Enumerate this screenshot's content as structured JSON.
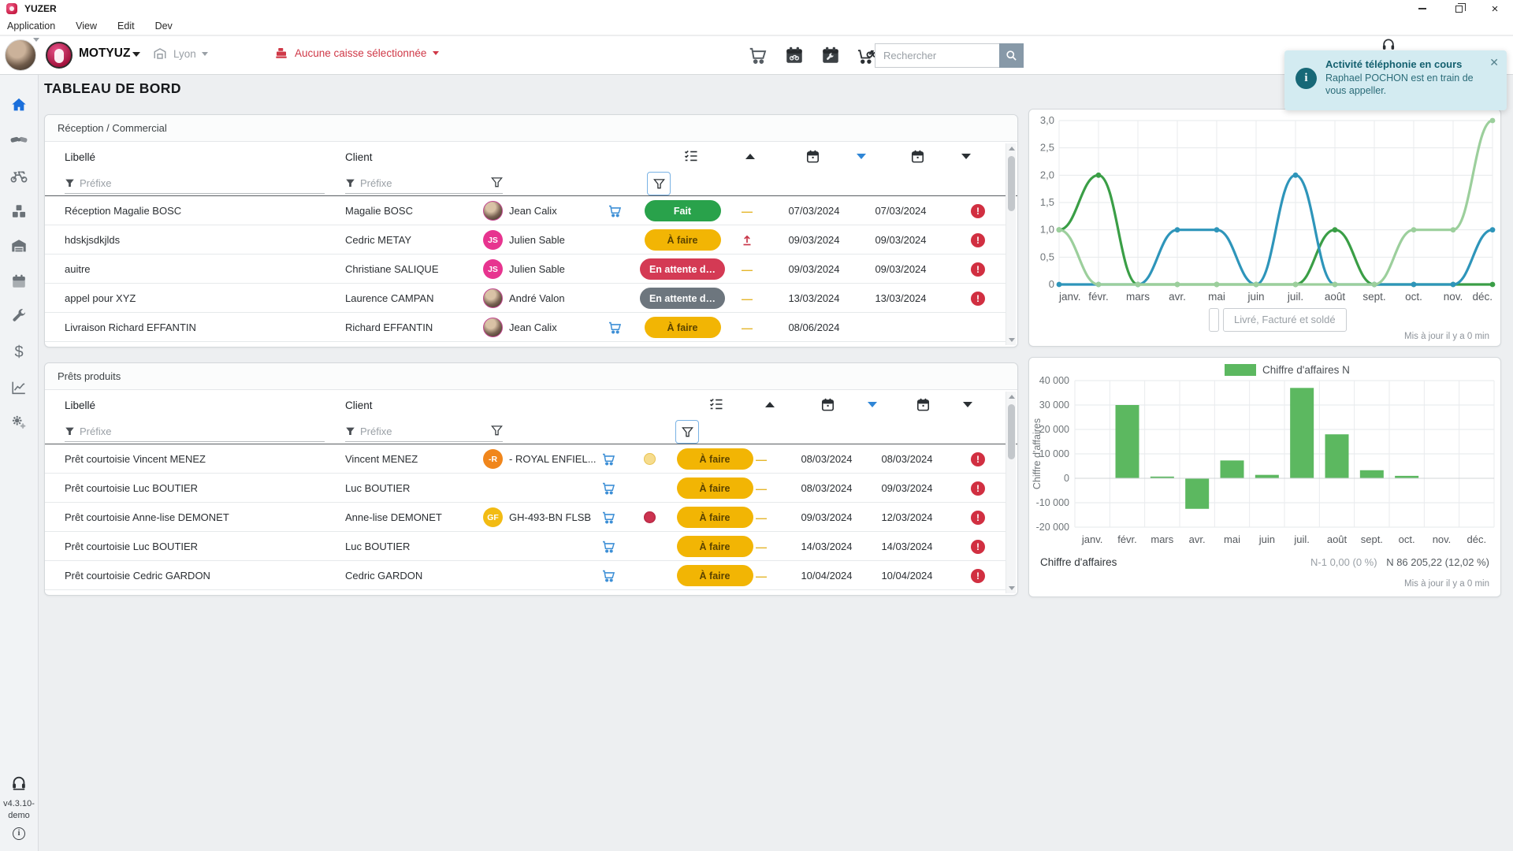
{
  "window": {
    "title": "YUZER"
  },
  "menu": {
    "items": [
      "Application",
      "View",
      "Edit",
      "Dev"
    ]
  },
  "toolbar": {
    "org": "MOTYUZ",
    "site": "Lyon",
    "cash_status": "Aucune caisse sélectionnée",
    "search_placeholder": "Rechercher"
  },
  "toast": {
    "title": "Activité téléphonie en cours",
    "message": "Raphael POCHON est en train de vous appeller."
  },
  "page": {
    "title": "TABLEAU DE BORD"
  },
  "sidebar": {
    "items": [
      {
        "id": "home",
        "icon": "home-icon",
        "active": true
      },
      {
        "id": "crm",
        "icon": "handshake-icon",
        "active": false
      },
      {
        "id": "motorcycles",
        "icon": "motorcycle-icon",
        "active": false
      },
      {
        "id": "stock",
        "icon": "cubes-icon",
        "active": false
      },
      {
        "id": "warehouse",
        "icon": "warehouse-icon",
        "active": false
      },
      {
        "id": "planning",
        "icon": "calendar-icon",
        "active": false
      },
      {
        "id": "workshop",
        "icon": "wrench-icon",
        "active": false
      },
      {
        "id": "finance",
        "icon": "dollar-icon",
        "active": false
      },
      {
        "id": "statistics",
        "icon": "chart-icon",
        "active": false
      },
      {
        "id": "settings",
        "icon": "gears-icon",
        "active": false
      }
    ],
    "version": "v4.3.10-demo"
  },
  "tables": [
    {
      "kind": "reception",
      "title": "Réception / Commercial",
      "columns": {
        "libelle": "Libellé",
        "client": "Client"
      },
      "filter_placeholder": "Préfixe",
      "rows": [
        {
          "libelle": "Réception Magalie BOSC",
          "client": "Magalie BOSC",
          "advisor": {
            "name": "Jean Calix",
            "type": "photo"
          },
          "cart": true,
          "status": "Fait",
          "status_color": "green",
          "flag": "dash",
          "date1": "07/03/2024",
          "date2": "07/03/2024",
          "alert": true
        },
        {
          "libelle": "hdskjsdkjlds",
          "client": "Cedric METAY",
          "advisor": {
            "name": "Julien Sable",
            "type": "initials",
            "initials": "JS",
            "color": "#e7348f"
          },
          "cart": false,
          "status": "À faire",
          "status_color": "yellow",
          "flag": "upload",
          "date1": "09/03/2024",
          "date2": "09/03/2024",
          "alert": true
        },
        {
          "libelle": "auitre",
          "client": "Christiane SALIQUE",
          "advisor": {
            "name": "Julien Sable",
            "type": "initials",
            "initials": "JS",
            "color": "#e7348f"
          },
          "cart": false,
          "status": "En attente d…",
          "status_color": "red",
          "flag": "dash",
          "date1": "09/03/2024",
          "date2": "09/03/2024",
          "alert": true
        },
        {
          "libelle": "appel pour XYZ",
          "client": "Laurence CAMPAN",
          "advisor": {
            "name": "André Valon",
            "type": "photo"
          },
          "cart": false,
          "status": "En attente d…",
          "status_color": "gray",
          "flag": "dash",
          "date1": "13/03/2024",
          "date2": "13/03/2024",
          "alert": true
        },
        {
          "libelle": "Livraison Richard EFFANTIN",
          "client": "Richard EFFANTIN",
          "advisor": {
            "name": "Jean Calix",
            "type": "photo"
          },
          "cart": true,
          "status": "À faire",
          "status_color": "yellow",
          "flag": "dash",
          "date1": "08/06/2024",
          "date2": "",
          "alert": false
        }
      ]
    },
    {
      "kind": "prets",
      "title": "Prêts produits",
      "columns": {
        "libelle": "Libellé",
        "client": "Client"
      },
      "filter_placeholder": "Préfixe",
      "rows": [
        {
          "libelle": "Prêt courtoisie Vincent MENEZ",
          "client": "Vincent MENEZ",
          "vehicle": {
            "label": "- ROYAL ENFIEL...",
            "initials": "-R",
            "color": "#f0861c"
          },
          "cart": true,
          "indicator": "yellow",
          "status": "À faire",
          "status_color": "yellow",
          "flag": "dash",
          "date1": "08/03/2024",
          "date2": "08/03/2024",
          "alert": true
        },
        {
          "libelle": "Prêt courtoisie Luc BOUTIER",
          "client": "Luc BOUTIER",
          "vehicle": null,
          "cart": true,
          "indicator": "none",
          "status": "À faire",
          "status_color": "yellow",
          "flag": "dash",
          "date1": "08/03/2024",
          "date2": "09/03/2024",
          "alert": true
        },
        {
          "libelle": "Prêt courtoisie Anne-lise DEMONET",
          "client": "Anne-lise DEMONET",
          "vehicle": {
            "label": "GH-493-BN FLSB",
            "initials": "GF",
            "color": "#f2bb13"
          },
          "cart": true,
          "indicator": "red",
          "status": "À faire",
          "status_color": "yellow",
          "flag": "dash",
          "date1": "09/03/2024",
          "date2": "12/03/2024",
          "alert": true
        },
        {
          "libelle": "Prêt courtoisie Luc BOUTIER",
          "client": "Luc BOUTIER",
          "vehicle": null,
          "cart": true,
          "indicator": "none",
          "status": "À faire",
          "status_color": "yellow",
          "flag": "dash",
          "date1": "14/03/2024",
          "date2": "14/03/2024",
          "alert": true
        },
        {
          "libelle": "Prêt courtoisie Cedric GARDON",
          "client": "Cedric GARDON",
          "vehicle": null,
          "cart": true,
          "indicator": "none",
          "status": "À faire",
          "status_color": "yellow",
          "flag": "dash",
          "date1": "10/04/2024",
          "date2": "10/04/2024",
          "alert": true
        }
      ]
    }
  ],
  "chart_data": [
    {
      "type": "line",
      "categories": [
        "janv.",
        "févr.",
        "mars",
        "avr.",
        "mai",
        "juin",
        "juil.",
        "août",
        "sept.",
        "oct.",
        "nov.",
        "déc."
      ],
      "series": [
        {
          "name": "serie-verte",
          "color": "#3a9e46",
          "values": [
            1,
            2,
            0,
            0,
            0,
            0,
            0,
            1,
            0,
            0,
            0,
            0
          ]
        },
        {
          "name": "serie-bleue",
          "color": "#2e95ba",
          "values": [
            0,
            0,
            0,
            1,
            1,
            0,
            2,
            0,
            0,
            0,
            0,
            1
          ]
        },
        {
          "name": "serie-vert-clair",
          "color": "#9ccf9c",
          "values": [
            1,
            0,
            0,
            0,
            0,
            0,
            0,
            0,
            0,
            1,
            1,
            3
          ]
        }
      ],
      "ylim": [
        0,
        3
      ],
      "yticks": [
        "0",
        "0,5",
        "1,0",
        "1,5",
        "2,0",
        "2,5",
        "3,0"
      ],
      "grid": true,
      "legend_disabled": "Livré, Facturé et soldé",
      "updated": "Mis à jour il y a 0 min"
    },
    {
      "type": "bar",
      "categories": [
        "janv.",
        "févr.",
        "mars",
        "avr.",
        "mai",
        "juin",
        "juil.",
        "août",
        "sept.",
        "oct.",
        "nov.",
        "déc."
      ],
      "values": [
        0,
        30000,
        700,
        -12500,
        7300,
        1400,
        37000,
        18000,
        3300,
        1000,
        0,
        0
      ],
      "bar_color": "#5cb860",
      "legend": "Chiffre d'affaires N",
      "ylabel": "Chiffre d'affaires",
      "ylim": [
        -20000,
        40000
      ],
      "yticks": [
        "40 000",
        "30 000",
        "20 000",
        "10 000",
        "0",
        "-10 000",
        "-20 000"
      ],
      "grid": true,
      "footer_left": "Chiffre d'affaires",
      "footer_n1": "N-1 0,00 (0 %)",
      "footer_n": "N 86 205,22 (12,02 %)",
      "updated": "Mis à jour il y a 0 min"
    }
  ]
}
